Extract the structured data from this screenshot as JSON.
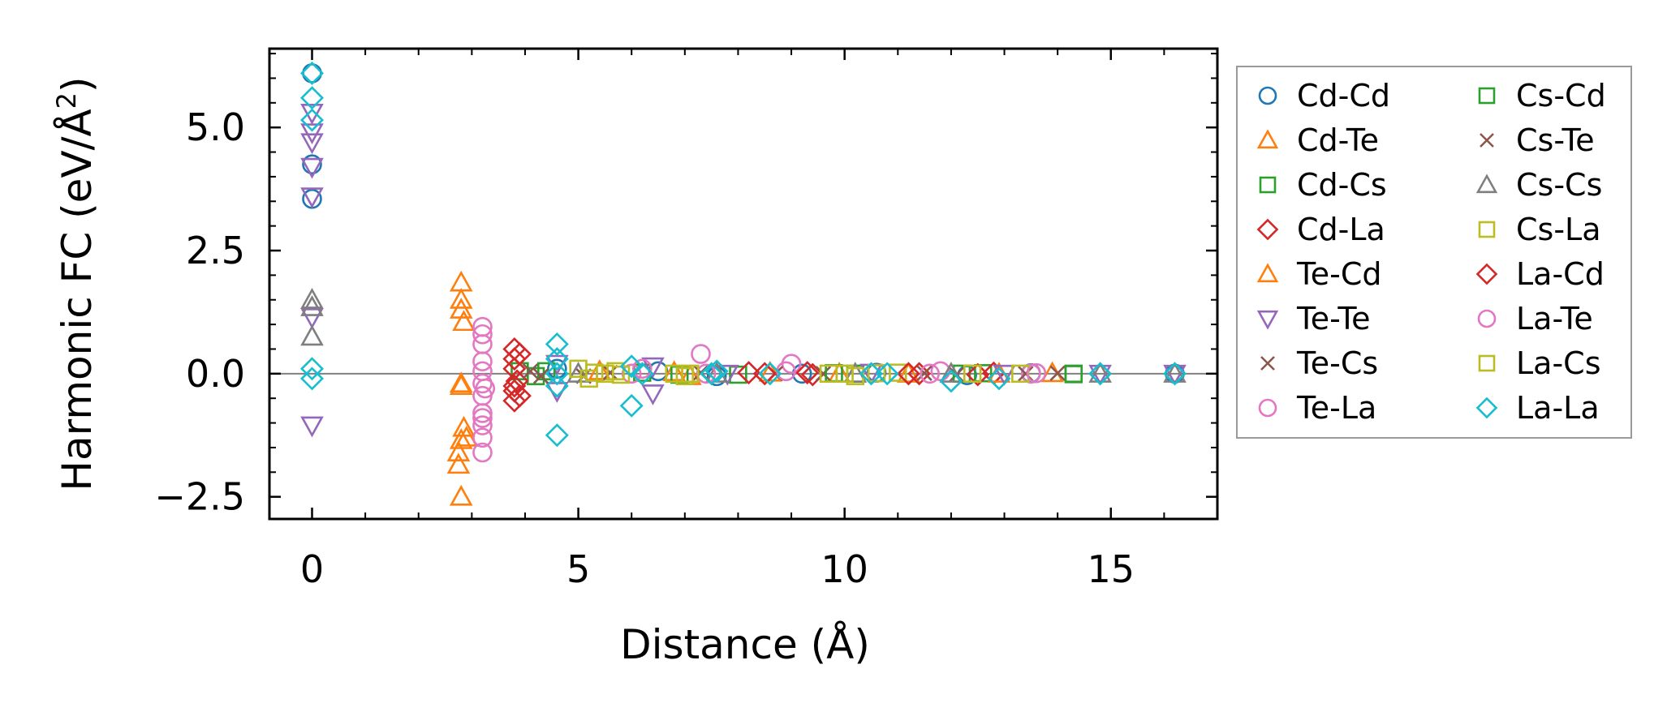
{
  "chart_data": {
    "type": "scatter",
    "title": "",
    "xlabel": "Distance (Å)",
    "ylabel_main": "Harmonic FC (eV/Å",
    "ylabel_sup": "2",
    "ylabel_end": ")",
    "xlim": [
      -0.8,
      17
    ],
    "ylim": [
      -2.95,
      6.6
    ],
    "xticks": [
      0,
      5,
      10,
      15
    ],
    "xtick_labels": [
      "0",
      "5",
      "10",
      "15"
    ],
    "yticks": [
      -2.5,
      0.0,
      2.5,
      5.0
    ],
    "ytick_labels": [
      "−2.5",
      "0.0",
      "2.5",
      "5.0"
    ],
    "grid": false,
    "zero_line": true,
    "legend_position": "outside-right",
    "legend_columns": 2,
    "series": [
      {
        "name": "Cd-Cd",
        "marker": "circle",
        "color": "#1f77b4",
        "points": [
          [
            0,
            6.1
          ],
          [
            0,
            4.25
          ],
          [
            0,
            3.55
          ],
          [
            4.6,
            0.1
          ],
          [
            6.5,
            0.05
          ],
          [
            7.6,
            -0.05
          ],
          [
            9.2,
            0.0
          ],
          [
            10.6,
            0.02
          ],
          [
            12.3,
            -0.03
          ],
          [
            13.5,
            0.01
          ],
          [
            16.2,
            0.0
          ]
        ]
      },
      {
        "name": "Cd-Te",
        "marker": "triangle-up",
        "color": "#ff7f0e",
        "points": [
          [
            2.8,
            1.85
          ],
          [
            2.8,
            1.5
          ],
          [
            2.85,
            1.05
          ],
          [
            2.8,
            -0.25
          ],
          [
            2.85,
            -1.1
          ],
          [
            2.8,
            -1.35
          ],
          [
            2.75,
            -1.85
          ],
          [
            2.8,
            -2.5
          ],
          [
            5.4,
            0.05
          ],
          [
            7.1,
            -0.05
          ],
          [
            8.6,
            0.02
          ],
          [
            11.2,
            0.0
          ],
          [
            13.9,
            0.01
          ]
        ]
      },
      {
        "name": "Cd-Cs",
        "marker": "square",
        "color": "#2ca02c",
        "points": [
          [
            3.9,
            0.05
          ],
          [
            4.2,
            -0.05
          ],
          [
            6.2,
            0.02
          ],
          [
            8.0,
            -0.02
          ],
          [
            10.2,
            0.0
          ],
          [
            12.6,
            0.01
          ],
          [
            14.3,
            0.0
          ]
        ]
      },
      {
        "name": "Cd-La",
        "marker": "diamond",
        "color": "#d62728",
        "points": [
          [
            3.8,
            0.5
          ],
          [
            3.8,
            0.3
          ],
          [
            3.8,
            0.1
          ],
          [
            3.85,
            -0.15
          ],
          [
            3.8,
            -0.35
          ],
          [
            3.8,
            -0.55
          ],
          [
            8.2,
            0.02
          ],
          [
            9.4,
            -0.02
          ],
          [
            11.4,
            0.0
          ],
          [
            12.8,
            0.01
          ]
        ]
      },
      {
        "name": "Te-Cd",
        "marker": "triangle-up",
        "color": "#ff7f0e",
        "points": [
          [
            2.8,
            1.3
          ],
          [
            2.9,
            -1.3
          ],
          [
            2.75,
            -1.6
          ],
          [
            2.8,
            -0.2
          ],
          [
            6.8,
            0.03
          ],
          [
            9.9,
            0.0
          ],
          [
            12.9,
            0.0
          ]
        ]
      },
      {
        "name": "Te-Te",
        "marker": "triangle-down",
        "color": "#9467bd",
        "points": [
          [
            0,
            5.3
          ],
          [
            0,
            4.9
          ],
          [
            0,
            4.7
          ],
          [
            0,
            4.2
          ],
          [
            0,
            3.6
          ],
          [
            0,
            1.15
          ],
          [
            0,
            -1.05
          ],
          [
            4.6,
            0.2
          ],
          [
            4.6,
            -0.35
          ],
          [
            6.4,
            0.15
          ],
          [
            6.4,
            -0.4
          ],
          [
            7.8,
            0.0
          ],
          [
            10.5,
            0.02
          ],
          [
            13.0,
            0.0
          ],
          [
            14.8,
            0.0
          ],
          [
            16.2,
            0.0
          ]
        ]
      },
      {
        "name": "Te-Cs",
        "marker": "x",
        "color": "#8c564b",
        "points": [
          [
            4.1,
            0.05
          ],
          [
            5.1,
            -0.05
          ],
          [
            7.3,
            0.02
          ],
          [
            9.6,
            0.0
          ],
          [
            12.1,
            -0.02
          ],
          [
            14.0,
            0.01
          ]
        ]
      },
      {
        "name": "Te-La",
        "marker": "circle",
        "color": "#e377c2",
        "points": [
          [
            3.2,
            0.95
          ],
          [
            3.2,
            0.8
          ],
          [
            3.2,
            0.25
          ],
          [
            3.2,
            0.05
          ],
          [
            3.2,
            -0.2
          ],
          [
            3.2,
            -0.45
          ],
          [
            3.2,
            -0.8
          ],
          [
            3.2,
            -1.05
          ],
          [
            3.2,
            -1.3
          ],
          [
            3.2,
            -1.6
          ],
          [
            6.0,
            0.0
          ],
          [
            7.3,
            0.4
          ],
          [
            9.0,
            0.2
          ],
          [
            11.8,
            0.05
          ],
          [
            13.5,
            0.0
          ]
        ]
      },
      {
        "name": "Cs-Cd",
        "marker": "square",
        "color": "#2ca02c",
        "points": [
          [
            4.4,
            0.05
          ],
          [
            6.9,
            -0.02
          ],
          [
            9.8,
            0.01
          ],
          [
            12.2,
            0.0
          ],
          [
            14.3,
            -0.01
          ]
        ]
      },
      {
        "name": "Cs-Te",
        "marker": "x",
        "color": "#8c564b",
        "points": [
          [
            4.3,
            -0.05
          ],
          [
            5.6,
            0.02
          ],
          [
            8.7,
            0.0
          ],
          [
            11.5,
            0.01
          ],
          [
            13.4,
            0.0
          ]
        ]
      },
      {
        "name": "Cs-Cs",
        "marker": "triangle-up",
        "color": "#7f7f7f",
        "points": [
          [
            0,
            1.5
          ],
          [
            0,
            1.35
          ],
          [
            0,
            0.75
          ],
          [
            5.0,
            0.0
          ],
          [
            7.6,
            0.0
          ],
          [
            10.2,
            0.0
          ],
          [
            12.0,
            0.0
          ],
          [
            14.8,
            0.0
          ],
          [
            16.2,
            0.0
          ]
        ]
      },
      {
        "name": "Cs-La",
        "marker": "square",
        "color": "#bcbd22",
        "points": [
          [
            5.0,
            0.1
          ],
          [
            5.2,
            -0.1
          ],
          [
            5.5,
            0.0
          ],
          [
            5.7,
            0.05
          ],
          [
            6.8,
            0.0
          ],
          [
            7.0,
            -0.05
          ],
          [
            10.0,
            0.0
          ],
          [
            10.2,
            -0.05
          ],
          [
            11.0,
            0.02
          ],
          [
            13.3,
            0.0
          ]
        ]
      },
      {
        "name": "La-Cd",
        "marker": "diamond",
        "color": "#d62728",
        "points": [
          [
            3.9,
            0.4
          ],
          [
            3.8,
            -0.25
          ],
          [
            3.9,
            -0.45
          ],
          [
            8.5,
            0.0
          ],
          [
            9.3,
            0.02
          ],
          [
            11.2,
            0.0
          ],
          [
            12.5,
            -0.02
          ]
        ]
      },
      {
        "name": "La-Te",
        "marker": "circle",
        "color": "#e377c2",
        "points": [
          [
            3.2,
            0.6
          ],
          [
            3.25,
            -0.3
          ],
          [
            3.2,
            -0.9
          ],
          [
            6.2,
            0.1
          ],
          [
            7.4,
            0.0
          ],
          [
            8.9,
            0.05
          ],
          [
            11.6,
            0.0
          ],
          [
            13.6,
            0.01
          ]
        ]
      },
      {
        "name": "La-Cs",
        "marker": "square",
        "color": "#bcbd22",
        "points": [
          [
            5.3,
            0.02
          ],
          [
            5.8,
            -0.02
          ],
          [
            7.1,
            0.0
          ],
          [
            9.7,
            0.0
          ],
          [
            10.6,
            0.01
          ],
          [
            12.4,
            0.0
          ]
        ]
      },
      {
        "name": "La-La",
        "marker": "diamond",
        "color": "#17becf",
        "points": [
          [
            0,
            6.1
          ],
          [
            0,
            5.6
          ],
          [
            0,
            5.15
          ],
          [
            0,
            0.1
          ],
          [
            0,
            -0.1
          ],
          [
            4.6,
            0.6
          ],
          [
            4.6,
            0.3
          ],
          [
            4.6,
            0.0
          ],
          [
            4.6,
            -0.25
          ],
          [
            4.6,
            -1.25
          ],
          [
            6.0,
            0.15
          ],
          [
            6.0,
            -0.65
          ],
          [
            6.2,
            0.0
          ],
          [
            7.5,
            0.0
          ],
          [
            7.6,
            0.05
          ],
          [
            8.6,
            0.0
          ],
          [
            10.5,
            0.0
          ],
          [
            10.8,
            0.0
          ],
          [
            12.0,
            -0.15
          ],
          [
            12.9,
            -0.1
          ],
          [
            14.8,
            0.0
          ],
          [
            16.2,
            0.0
          ]
        ]
      }
    ]
  }
}
